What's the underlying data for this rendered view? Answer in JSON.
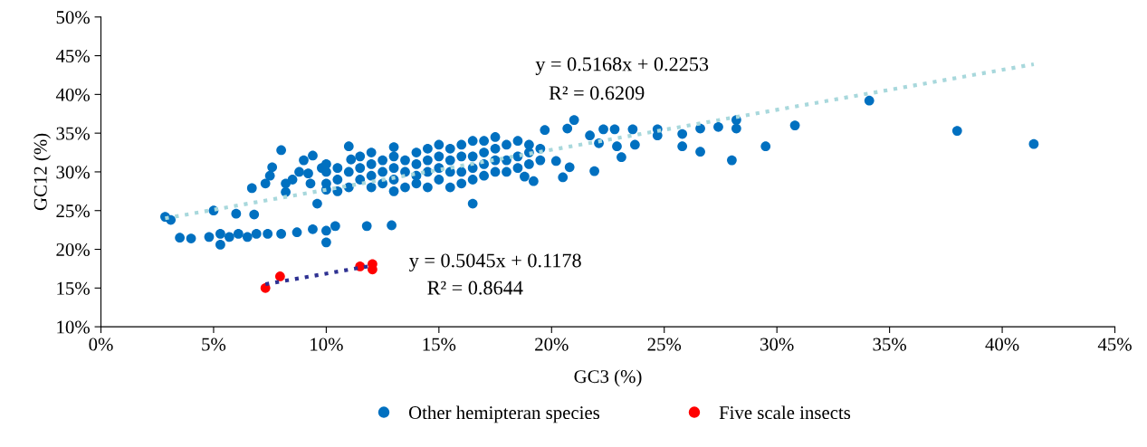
{
  "chart_data": {
    "type": "scatter",
    "xlabel": "GC3 (%)",
    "ylabel": "GC12 (%)",
    "xlim": [
      0,
      45
    ],
    "ylim": [
      10,
      50
    ],
    "xticks": [
      {
        "value": 0,
        "label": "0%"
      },
      {
        "value": 5,
        "label": "5%"
      },
      {
        "value": 10,
        "label": "10%"
      },
      {
        "value": 15,
        "label": "15%"
      },
      {
        "value": 20,
        "label": "20%"
      },
      {
        "value": 25,
        "label": "25%"
      },
      {
        "value": 30,
        "label": "30%"
      },
      {
        "value": 35,
        "label": "35%"
      },
      {
        "value": 40,
        "label": "40%"
      },
      {
        "value": 45,
        "label": "45%"
      }
    ],
    "yticks": [
      {
        "value": 10,
        "label": "10%"
      },
      {
        "value": 15,
        "label": "15%"
      },
      {
        "value": 20,
        "label": "20%"
      },
      {
        "value": 25,
        "label": "25%"
      },
      {
        "value": 30,
        "label": "30%"
      },
      {
        "value": 35,
        "label": "35%"
      },
      {
        "value": 40,
        "label": "40%"
      },
      {
        "value": 45,
        "label": "45%"
      },
      {
        "value": 50,
        "label": "50%"
      }
    ],
    "grid": false,
    "legend": "bottom",
    "marker": "circle",
    "annotations": [
      "y = 0.5168x + 0.2253",
      "R² = 0.6209",
      "y = 0.5045x + 0.1178",
      "R² = 0.8644"
    ],
    "series": [
      {
        "name": "Other hemipteran species",
        "color": "#0070c0",
        "x": [
          2.85,
          3.1,
          3.5,
          4.0,
          4.8,
          5.3,
          5.3,
          5.7,
          6.1,
          6.5,
          6.9,
          7.4,
          8.0,
          8.7,
          9.4,
          10.0,
          10.0,
          10.4,
          11.8,
          12.9,
          5.0,
          6.0,
          6.7,
          6.8,
          7.3,
          7.6,
          8.0,
          8.2,
          9.2,
          9.4,
          9.6,
          10.0,
          11.1,
          11.0,
          7.5,
          8.2,
          8.5,
          8.8,
          9.0,
          9.3,
          9.8,
          10.0,
          10.0,
          10.0,
          10.5,
          10.5,
          10.5,
          11.0,
          11.0,
          11.5,
          11.5,
          11.5,
          12.0,
          12.0,
          12.0,
          12.0,
          12.5,
          12.5,
          12.5,
          13.0,
          13.0,
          13.0,
          13.0,
          13.0,
          13.5,
          13.5,
          13.5,
          14.0,
          14.0,
          14.0,
          14.0,
          14.5,
          14.5,
          14.5,
          14.5,
          15.0,
          15.0,
          15.0,
          15.0,
          15.5,
          15.5,
          15.5,
          15.5,
          16.0,
          16.0,
          16.0,
          16.0,
          16.5,
          16.5,
          16.5,
          16.5,
          17.0,
          17.0,
          17.0,
          17.0,
          17.5,
          17.5,
          17.5,
          17.5,
          18.0,
          18.0,
          18.0,
          18.5,
          18.5,
          18.5,
          19.0,
          19.0,
          19.0,
          19.5,
          19.5,
          16.5,
          18.8,
          19.2,
          20.2,
          20.5,
          20.8,
          21.9,
          21.7,
          22.1,
          23.1,
          22.9,
          23.7,
          24.7,
          25.8,
          26.6,
          28.0,
          19.7,
          20.7,
          21.0,
          22.3,
          22.8,
          23.6,
          24.7,
          25.8,
          26.6,
          27.4,
          28.2,
          28.2,
          29.5,
          30.8,
          34.1,
          38.0,
          41.4
        ],
        "values": [
          24.2,
          23.8,
          21.5,
          21.4,
          21.6,
          22.0,
          20.6,
          21.6,
          22.0,
          21.6,
          22.0,
          22.0,
          22.0,
          22.2,
          22.6,
          22.4,
          20.9,
          23.0,
          23.0,
          23.1,
          25.0,
          24.6,
          27.9,
          24.5,
          28.5,
          30.6,
          32.8,
          27.4,
          29.8,
          32.1,
          25.9,
          27.7,
          31.6,
          33.3,
          29.5,
          28.5,
          29.0,
          30.0,
          31.5,
          28.5,
          30.5,
          28.5,
          30.0,
          31.0,
          29.0,
          30.5,
          27.5,
          30.0,
          28.0,
          29.0,
          30.5,
          32.0,
          28.0,
          29.5,
          31.0,
          32.5,
          28.5,
          30.0,
          31.5,
          27.5,
          29.0,
          30.5,
          32.0,
          33.2,
          28.0,
          30.0,
          31.5,
          28.5,
          29.5,
          31.0,
          32.5,
          28.0,
          30.0,
          31.5,
          33.0,
          29.0,
          30.5,
          32.0,
          33.5,
          28.0,
          30.0,
          31.5,
          33.0,
          28.5,
          30.0,
          32.0,
          33.5,
          29.0,
          30.5,
          32.0,
          34.0,
          29.5,
          31.0,
          32.5,
          34.0,
          30.0,
          31.5,
          33.0,
          34.5,
          30.0,
          31.5,
          33.5,
          30.5,
          32.0,
          34.0,
          31.0,
          32.5,
          33.5,
          31.5,
          33.0,
          25.9,
          29.4,
          28.8,
          31.4,
          29.3,
          30.6,
          30.1,
          34.7,
          33.7,
          31.9,
          33.3,
          33.5,
          34.7,
          33.3,
          32.6,
          31.5,
          35.4,
          35.6,
          36.7,
          35.5,
          35.5,
          35.5,
          35.5,
          34.9,
          35.6,
          35.8,
          36.7,
          35.6,
          33.3,
          36.0,
          39.2,
          35.3,
          33.6
        ]
      },
      {
        "name": "Five scale insects",
        "color": "#ff0000",
        "x": [
          7.3,
          7.95,
          11.5,
          12.05,
          12.05
        ],
        "values": [
          15.0,
          16.5,
          17.8,
          18.1,
          17.4
        ]
      },
      {
        "color": "#a8d8dc",
        "type": "line",
        "line_style": "dotted",
        "marker": "none",
        "x": [
          2.85,
          41.4
        ],
        "values": [
          24.0,
          43.9
        ]
      },
      {
        "color": "#2e3192",
        "type": "line",
        "line_style": "dotted",
        "marker": "none",
        "x": [
          7.3,
          12.05
        ],
        "values": [
          15.5,
          17.9
        ]
      }
    ]
  }
}
